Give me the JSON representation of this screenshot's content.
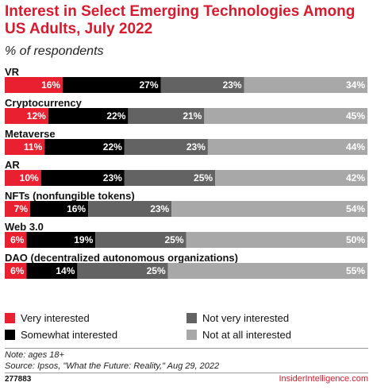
{
  "header": {
    "title": "Interest in Select Emerging Technologies Among US Adults, July 2022",
    "subtitle": "% of respondents"
  },
  "chart_data": {
    "type": "bar",
    "stacked": true,
    "orientation": "horizontal",
    "unit": "%",
    "categories": [
      "VR",
      "Cryptocurrency",
      "Metaverse",
      "AR",
      "NFTs (nonfungible tokens)",
      "Web 3.0",
      "DAO (decentralized autonomous organizations)"
    ],
    "series": [
      {
        "name": "Very interested",
        "color": "#e8202f",
        "values": [
          16,
          12,
          11,
          10,
          7,
          6,
          6
        ]
      },
      {
        "name": "Somewhat interested",
        "color": "#000000",
        "values": [
          27,
          22,
          22,
          23,
          16,
          19,
          14
        ]
      },
      {
        "name": "Not very interested",
        "color": "#636363",
        "values": [
          23,
          21,
          23,
          25,
          23,
          25,
          25
        ]
      },
      {
        "name": "Not at all interested",
        "color": "#a8a8a8",
        "values": [
          34,
          45,
          44,
          42,
          54,
          50,
          55
        ]
      }
    ],
    "legend_position": "bottom"
  },
  "footer": {
    "note": "Note: ages 18+",
    "source": "Source: Ipsos, \"What the Future: Reality,\" Aug 29, 2022",
    "chart_id": "277883",
    "brand": "InsiderIntelligence.com"
  }
}
